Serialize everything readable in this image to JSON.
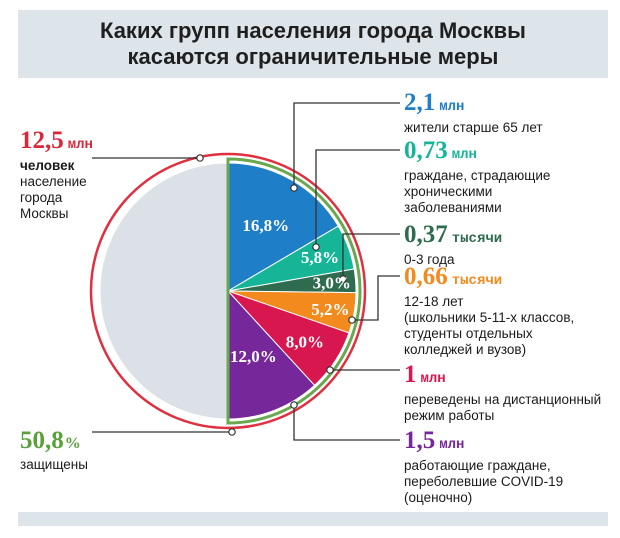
{
  "title_line1": "Каких групп населения города Москвы",
  "title_line2": "касаются ограничительные меры",
  "total": {
    "value": "12,5",
    "unit": "млн",
    "label_line1": "человек",
    "label_line2": "население",
    "label_line3": "города",
    "label_line4": "Москвы"
  },
  "protected": {
    "value": "50,8",
    "unit": "%",
    "label": "защищены"
  },
  "annotations": [
    {
      "value": "2,1",
      "unit": "млн",
      "lines": [
        "жители старше 65 лет"
      ]
    },
    {
      "value": "0,73",
      "unit": "млн",
      "lines": [
        "граждане, страдающие",
        "хроническими",
        "заболеваниями"
      ]
    },
    {
      "value": "0,37",
      "unit": "тысячи",
      "lines": [
        "0-3 года"
      ]
    },
    {
      "value": "0,66",
      "unit": "тысячи",
      "lines": [
        "12-18 лет",
        "(школьники 5-11-х классов,",
        "студенты отдельных",
        "колледжей и вузов)"
      ]
    },
    {
      "value": "1",
      "unit": "млн",
      "lines": [
        "переведены на дистанционный",
        "режим работы"
      ]
    },
    {
      "value": "1,5",
      "unit": "млн",
      "lines": [
        "работающие граждане,",
        "переболевшие COVID-19",
        "(оценочно)"
      ]
    }
  ],
  "chart_data": {
    "type": "pie",
    "start_angle_deg": 0,
    "slices": [
      {
        "label": "16,8%",
        "value": 16.8,
        "color": "#1f7ec8"
      },
      {
        "label": "5,8%",
        "value": 5.8,
        "color": "#17b597"
      },
      {
        "label": "3,0%",
        "value": 3.0,
        "color": "#2f6b4f"
      },
      {
        "label": "5,2%",
        "value": 5.2,
        "color": "#f28a1e"
      },
      {
        "label": "8,0%",
        "value": 8.0,
        "color": "#d8174f"
      },
      {
        "label": "12,0%",
        "value": 12.0,
        "color": "#76289a"
      },
      {
        "label": "",
        "value": 50.8,
        "color": "#dbe1e7"
      }
    ],
    "outer_ring_color": "#e03040",
    "inner_ring_color": "#6aa84f"
  }
}
